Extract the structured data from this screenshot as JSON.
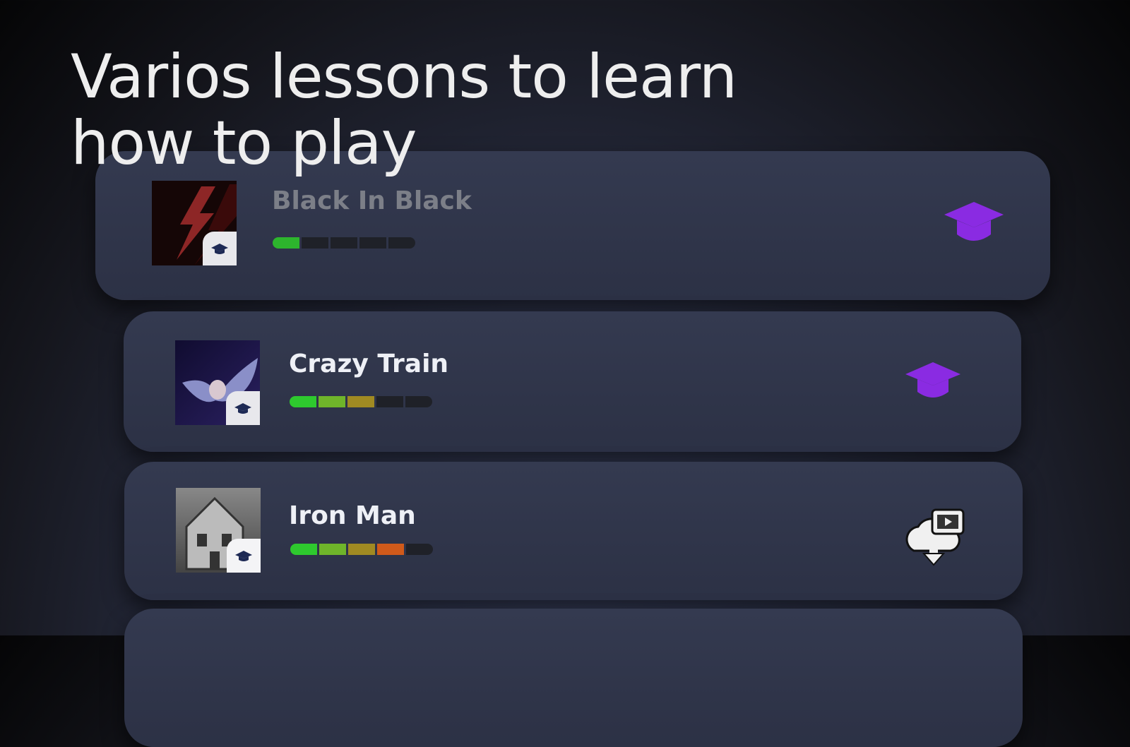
{
  "headline": {
    "line1": "Varios lessons to learn",
    "line2": "how to play"
  },
  "colors": {
    "accent": "#8a2be2",
    "segment_empty": "#1f2128"
  },
  "lessons": [
    {
      "title": "Black In Black",
      "progress_segments": 1,
      "total_segments": 5,
      "segment_colors": [
        "#2db52d"
      ],
      "thumb_icon": "lightning-bolt",
      "action_icon": "graduation-cap-icon"
    },
    {
      "title": "Crazy Train",
      "progress_segments": 3,
      "total_segments": 5,
      "segment_colors": [
        "#2ec92e",
        "#6fb52a",
        "#a08a22"
      ],
      "thumb_icon": "bat",
      "action_icon": "graduation-cap-icon"
    },
    {
      "title": "Iron Man",
      "progress_segments": 4,
      "total_segments": 5,
      "segment_colors": [
        "#2ec92e",
        "#6fb52a",
        "#a08a22",
        "#d05a1a"
      ],
      "thumb_icon": "haunted-house",
      "action_icon": "cloud-download-video-icon"
    }
  ]
}
